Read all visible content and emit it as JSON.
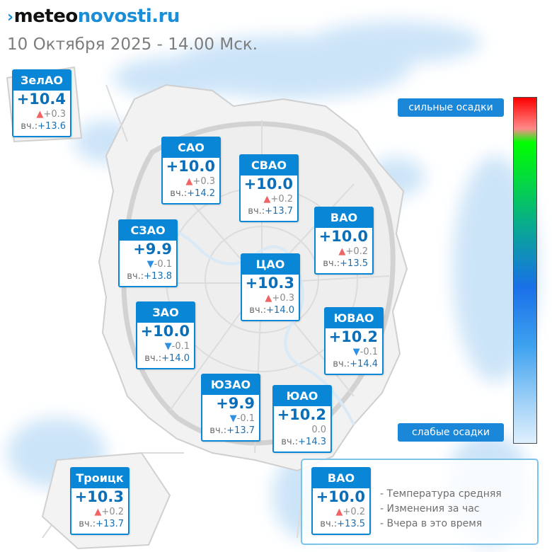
{
  "header": {
    "logo": {
      "mark": "›",
      "part1": "meteo",
      "part2": "novosti",
      "part3": ".ru"
    },
    "subtitle": "10 Октября 2025 - 14.00 Мск."
  },
  "yesterday_prefix": "вч.:",
  "districts": [
    {
      "name": "ЗелАО",
      "temp": "+10.4",
      "trend": "up",
      "change": "+0.3",
      "yesterday": "+13.6"
    },
    {
      "name": "САО",
      "temp": "+10.0",
      "trend": "up",
      "change": "+0.3",
      "yesterday": "+14.2"
    },
    {
      "name": "СВАО",
      "temp": "+10.0",
      "trend": "up",
      "change": "+0.2",
      "yesterday": "+13.7"
    },
    {
      "name": "ВАО",
      "temp": "+10.0",
      "trend": "up",
      "change": "+0.2",
      "yesterday": "+13.5"
    },
    {
      "name": "СЗАО",
      "temp": "+9.9",
      "trend": "down",
      "change": "-0.1",
      "yesterday": "+13.8"
    },
    {
      "name": "ЦАО",
      "temp": "+10.3",
      "trend": "up",
      "change": "+0.3",
      "yesterday": "+14.0"
    },
    {
      "name": "ЗАО",
      "temp": "+10.0",
      "trend": "down",
      "change": "-0.1",
      "yesterday": "+14.0"
    },
    {
      "name": "ЮВАО",
      "temp": "+10.2",
      "trend": "down",
      "change": "-0.1",
      "yesterday": "+14.4"
    },
    {
      "name": "ЮЗАО",
      "temp": "+9.9",
      "trend": "down",
      "change": "-0.1",
      "yesterday": "+13.7"
    },
    {
      "name": "ЮАО",
      "temp": "+10.2",
      "trend": "none",
      "change": "0.0",
      "yesterday": "+14.3"
    },
    {
      "name": "Троицк",
      "temp": "+10.3",
      "trend": "up",
      "change": "+0.2",
      "yesterday": "+13.7"
    }
  ],
  "legend": {
    "sample": {
      "name": "ВАО",
      "temp": "+10.0",
      "trend": "up",
      "change": "+0.2",
      "yesterday": "+13.5"
    },
    "lines": [
      "- Температура средняя",
      "- Изменения за час",
      "- Вчера в это время"
    ]
  },
  "precip_scale": {
    "high_label": "сильные осадки",
    "low_label": "слабые осадки"
  },
  "colors": {
    "accent": "#0a86d6",
    "trend_up": "#f06464",
    "trend_down": "#2f8fe0",
    "precip_light": "#dff0fd",
    "precip_heavy": "#ff0000"
  }
}
